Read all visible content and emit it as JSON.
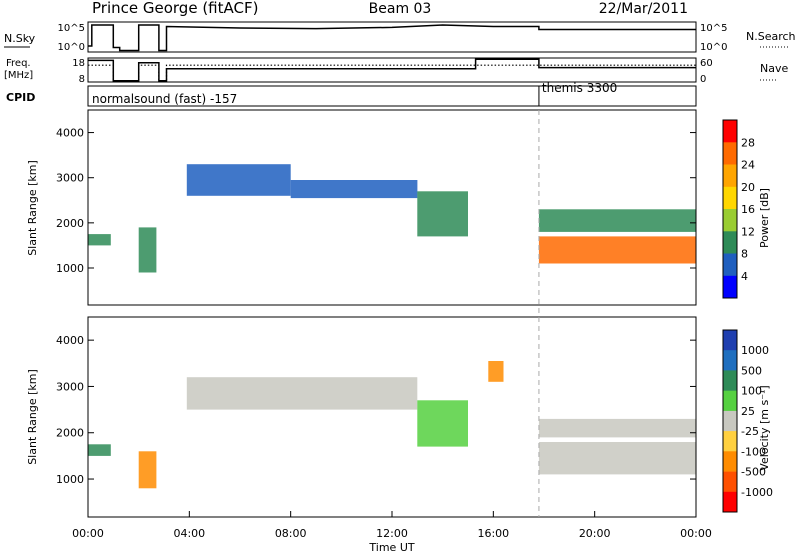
{
  "header": {
    "station": "Prince George (fitACF)",
    "beam": "Beam 03",
    "date": "22/Mar/2011"
  },
  "top_panels": {
    "nsky_label": "N.Sky",
    "nsky_ticks": [
      "10^5",
      "10^0"
    ],
    "nsearch_label": "N.Search",
    "nsearch_ticks": [
      "10^5",
      "10^0"
    ],
    "freq_label_1": "Freq.",
    "freq_label_2": "[MHz]",
    "freq_ticks": [
      "18",
      "8"
    ],
    "nave_label": "Nave",
    "nave_ticks": [
      "60",
      "0"
    ],
    "cpid_label": "CPID",
    "cpid_programs": [
      {
        "name": "normalsound (fast) -157",
        "start_hour": 0
      },
      {
        "name": "themis 3300",
        "start_hour": 17.8
      }
    ]
  },
  "power_colorbar": {
    "title": "Power [dB]",
    "ticks": [
      "28",
      "24",
      "20",
      "16",
      "12",
      "8",
      "4"
    ],
    "colors": [
      "#ff0000",
      "#ff6a00",
      "#ffa500",
      "#ffd700",
      "#9acd32",
      "#2e8b57",
      "#1f5fbf",
      "#0000ff"
    ]
  },
  "velocity_colorbar": {
    "title": "Velocity [m s⁻¹]",
    "ticks": [
      "1000",
      "500",
      "100",
      "25",
      "-25",
      "-100",
      "-500",
      "-1000"
    ],
    "colors": [
      "#1f3fb0",
      "#1f6fbf",
      "#2e8b57",
      "#55d040",
      "#c8c8c0",
      "#ffd040",
      "#ff8c00",
      "#ff5000",
      "#ff0000"
    ]
  },
  "chart_data": [
    {
      "type": "heatmap",
      "name": "power",
      "ylabel": "Slant Range [km]",
      "ylim": [
        180,
        4500
      ],
      "xlim": [
        0,
        24
      ],
      "yticks": [
        1000,
        2000,
        3000,
        4000
      ],
      "colorbar_label": "Power [dB]",
      "bands": [
        {
          "x0": 0.0,
          "x1": 0.9,
          "y0": 1500,
          "y1": 1750,
          "color": "#2e8b57"
        },
        {
          "x0": 2.0,
          "x1": 2.7,
          "y0": 900,
          "y1": 1900,
          "color": "#2e8b57"
        },
        {
          "x0": 3.9,
          "x1": 8.0,
          "y0": 2600,
          "y1": 3300,
          "color": "#1f5fbf"
        },
        {
          "x0": 8.0,
          "x1": 13.0,
          "y0": 2550,
          "y1": 2950,
          "color": "#1f5fbf"
        },
        {
          "x0": 13.0,
          "x1": 15.0,
          "y0": 1700,
          "y1": 2700,
          "color": "#2e8b57"
        },
        {
          "x0": 17.8,
          "x1": 24.0,
          "y0": 1100,
          "y1": 1700,
          "color": "#ff6a00"
        },
        {
          "x0": 17.8,
          "x1": 24.0,
          "y0": 1800,
          "y1": 2300,
          "color": "#2e8b57"
        }
      ]
    },
    {
      "type": "heatmap",
      "name": "velocity",
      "ylabel": "Slant Range [km]",
      "ylim": [
        180,
        4500
      ],
      "xlim": [
        0,
        24
      ],
      "yticks": [
        1000,
        2000,
        3000,
        4000
      ],
      "colorbar_label": "Velocity [m s⁻¹]",
      "bands": [
        {
          "x0": 0.0,
          "x1": 0.9,
          "y0": 1500,
          "y1": 1750,
          "color": "#2e8b57"
        },
        {
          "x0": 2.0,
          "x1": 2.7,
          "y0": 800,
          "y1": 1600,
          "color": "#ff8c00"
        },
        {
          "x0": 3.9,
          "x1": 13.0,
          "y0": 2500,
          "y1": 3200,
          "color": "#c8c8c0"
        },
        {
          "x0": 13.0,
          "x1": 15.0,
          "y0": 1700,
          "y1": 2700,
          "color": "#55d040"
        },
        {
          "x0": 15.8,
          "x1": 16.4,
          "y0": 3100,
          "y1": 3550,
          "color": "#ff8c00"
        },
        {
          "x0": 17.8,
          "x1": 24.0,
          "y0": 1100,
          "y1": 1800,
          "color": "#c8c8c0"
        },
        {
          "x0": 17.8,
          "x1": 24.0,
          "y0": 1900,
          "y1": 2300,
          "color": "#c8c8c0"
        }
      ]
    }
  ],
  "x_axis": {
    "label": "Time UT",
    "ticks": [
      "00:00",
      "04:00",
      "08:00",
      "12:00",
      "16:00",
      "20:00",
      "00:00"
    ]
  }
}
